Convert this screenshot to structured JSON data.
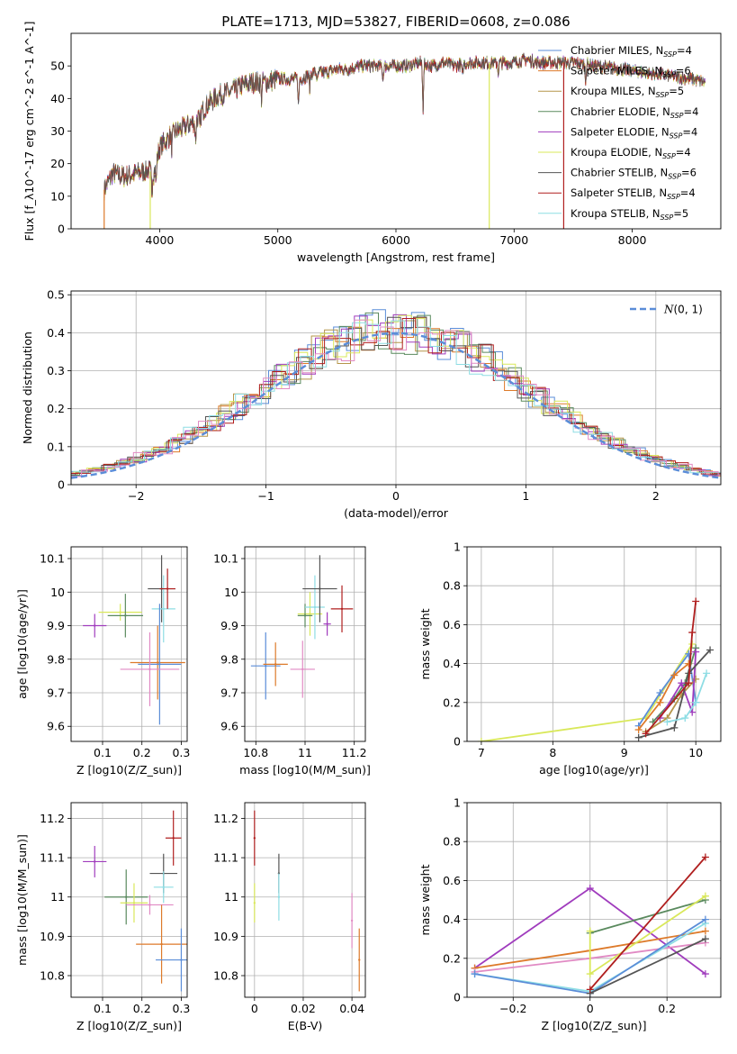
{
  "figure_title": "PLATE=1713, MJD=53827, FIBERID=0608, z=0.086",
  "colors": {
    "Chabrier MILES": "#5b8dd8",
    "Salpeter MILES": "#dd7a2a",
    "Kroupa MILES": "#b5954a",
    "Chabrier ELODIE": "#5a8a5e",
    "Salpeter ELODIE": "#a03cbd",
    "Kroupa ELODIE": "#d9e85a",
    "Chabrier STELIB": "#555555",
    "Salpeter STELIB": "#b01f1f",
    "Kroupa STELIB": "#8edde4",
    "pink": "#e18ac4",
    "normal": "#5b8dd8"
  },
  "chart_data": [
    {
      "id": "spectrum",
      "type": "line",
      "title": "PLATE=1713, MJD=53827, FIBERID=0608, z=0.086",
      "xlabel": "wavelength [Angstrom, rest frame]",
      "ylabel": "Flux [f_λ10^-17 erg cm^-2 s^-1 A^-1]",
      "xlim": [
        3250,
        8750
      ],
      "ylim": [
        0,
        60
      ],
      "xticks": [
        4000,
        5000,
        6000,
        7000,
        8000
      ],
      "yticks": [
        0,
        10,
        20,
        30,
        40,
        50
      ],
      "legend": [
        "Chabrier MILES, N_SSP=4",
        "Salpeter MILES, N_SSP=6",
        "Kroupa MILES, N_SSP=5",
        "Chabrier ELODIE, N_SSP=4",
        "Salpeter ELODIE, N_SSP=4",
        "Kroupa ELODIE, N_SSP=4",
        "Chabrier STELIB, N_SSP=6",
        "Salpeter STELIB, N_SSP=4",
        "Kroupa STELIB, N_SSP=5"
      ],
      "legend_placement": "right",
      "continuum": [
        [
          3530,
          12
        ],
        [
          3600,
          17
        ],
        [
          3700,
          16
        ],
        [
          3800,
          17
        ],
        [
          3900,
          18
        ],
        [
          3950,
          17
        ],
        [
          4000,
          25
        ],
        [
          4100,
          29
        ],
        [
          4200,
          31
        ],
        [
          4300,
          33
        ],
        [
          4400,
          38
        ],
        [
          4500,
          41
        ],
        [
          4600,
          42
        ],
        [
          4700,
          44
        ],
        [
          4800,
          45
        ],
        [
          4900,
          45
        ],
        [
          5000,
          46
        ],
        [
          5100,
          46
        ],
        [
          5200,
          46
        ],
        [
          5300,
          48
        ],
        [
          5400,
          48
        ],
        [
          5500,
          49
        ],
        [
          5600,
          49
        ],
        [
          5700,
          50
        ],
        [
          5800,
          50
        ],
        [
          5900,
          50
        ],
        [
          6000,
          50
        ],
        [
          6100,
          50
        ],
        [
          6200,
          51
        ],
        [
          6300,
          50
        ],
        [
          6400,
          51
        ],
        [
          6500,
          50
        ],
        [
          6600,
          51
        ],
        [
          6700,
          51
        ],
        [
          6800,
          51
        ],
        [
          6900,
          51
        ],
        [
          7000,
          51
        ],
        [
          7100,
          52
        ],
        [
          7200,
          51
        ],
        [
          7300,
          51
        ],
        [
          7400,
          51
        ],
        [
          7500,
          51
        ],
        [
          7700,
          50
        ],
        [
          7900,
          49
        ],
        [
          8100,
          48
        ],
        [
          8300,
          47
        ],
        [
          8500,
          46
        ],
        [
          8620,
          45
        ]
      ],
      "absorption_lines": [
        [
          3934,
          6
        ],
        [
          3969,
          6
        ],
        [
          4102,
          4
        ],
        [
          4304,
          6
        ],
        [
          4340,
          5
        ],
        [
          4861,
          5
        ],
        [
          5175,
          8
        ],
        [
          5270,
          4
        ],
        [
          5335,
          3
        ],
        [
          5890,
          4
        ],
        [
          6230,
          14
        ],
        [
          6563,
          4
        ],
        [
          6867,
          3
        ],
        [
          7605,
          5
        ]
      ],
      "cutoffs": [
        {
          "label": "Kroupa ELODIE",
          "x": 3920
        },
        {
          "label": "Kroupa ELODIE",
          "x": 6790
        },
        {
          "label": "Salpeter STELIB",
          "x": 7420
        },
        {
          "label": "Salpeter MILES",
          "x": 3530
        }
      ],
      "grid": false
    },
    {
      "id": "residuals",
      "type": "histogram",
      "xlabel": "(data-model)/error",
      "ylabel": "Normed distribution",
      "xlim": [
        -2.5,
        2.5
      ],
      "ylim": [
        0,
        0.51
      ],
      "xticks": [
        -2,
        -1,
        0,
        1,
        2
      ],
      "yticks": [
        0.0,
        0.1,
        0.2,
        0.3,
        0.4,
        0.5
      ],
      "legend": [
        "N(0,1)"
      ],
      "legend_placement": "upper right",
      "grid": true,
      "bin_width": 0.1,
      "reference_curve": "normal(0,1)"
    },
    {
      "id": "age_vs_Z",
      "type": "scatter",
      "xlabel": "Z [log10(Z/Z_sun)]",
      "ylabel": "age [log10(age/yr)]",
      "xlim": [
        0.02,
        0.315
      ],
      "ylim": [
        9.555,
        10.135
      ],
      "xticks": [
        0.1,
        0.2,
        0.3
      ],
      "yticks": [
        9.6,
        9.7,
        9.8,
        9.9,
        10.0,
        10.1
      ],
      "grid": true,
      "points": [
        {
          "x": 0.08,
          "y": 9.9,
          "xerr": 0.03,
          "yerr": 0.035,
          "series": "Salpeter ELODIE"
        },
        {
          "x": 0.145,
          "y": 9.94,
          "xerr": 0.055,
          "yerr": 0.025,
          "series": "Kroupa ELODIE"
        },
        {
          "x": 0.158,
          "y": 9.93,
          "xerr": 0.045,
          "yerr": 0.065,
          "series": "Chabrier ELODIE"
        },
        {
          "x": 0.25,
          "y": 10.01,
          "xerr": 0.035,
          "yerr": 0.1,
          "series": "Chabrier STELIB"
        },
        {
          "x": 0.255,
          "y": 9.95,
          "xerr": 0.03,
          "yerr": 0.1,
          "series": "Kroupa STELIB"
        },
        {
          "x": 0.265,
          "y": 10.01,
          "xerr": 0.02,
          "yerr": 0.06,
          "series": "Salpeter STELIB"
        },
        {
          "x": 0.24,
          "y": 9.79,
          "xerr": 0.07,
          "yerr": 0.11,
          "series": "Salpeter MILES"
        },
        {
          "x": 0.245,
          "y": 9.785,
          "xerr": 0.055,
          "yerr": 0.18,
          "series": "Chabrier MILES"
        },
        {
          "x": 0.22,
          "y": 9.77,
          "xerr": 0.075,
          "yerr": 0.11,
          "series": "pink"
        }
      ]
    },
    {
      "id": "age_vs_mass",
      "type": "scatter",
      "xlabel": "mass [log10(M/M_sun)]",
      "ylabel": "",
      "xlim": [
        10.755,
        11.245
      ],
      "ylim": [
        9.555,
        10.135
      ],
      "xticks": [
        10.8,
        11.0,
        11.2
      ],
      "yticks": [
        9.6,
        9.7,
        9.8,
        9.9,
        10.0,
        10.1
      ],
      "grid": true,
      "points": [
        {
          "x": 10.84,
          "y": 9.78,
          "xerr": 0.06,
          "yerr": 0.1,
          "series": "Chabrier MILES"
        },
        {
          "x": 10.88,
          "y": 9.785,
          "xerr": 0.05,
          "yerr": 0.065,
          "series": "Salpeter MILES"
        },
        {
          "x": 10.99,
          "y": 9.77,
          "xerr": 0.05,
          "yerr": 0.085,
          "series": "pink"
        },
        {
          "x": 11.02,
          "y": 9.935,
          "xerr": 0.05,
          "yerr": 0.065,
          "series": "Kroupa ELODIE"
        },
        {
          "x": 11.0,
          "y": 9.93,
          "xerr": 0.03,
          "yerr": 0.035,
          "series": "Chabrier ELODIE"
        },
        {
          "x": 11.04,
          "y": 9.955,
          "xerr": 0.04,
          "yerr": 0.095,
          "series": "Kroupa STELIB"
        },
        {
          "x": 11.06,
          "y": 10.01,
          "xerr": 0.07,
          "yerr": 0.1,
          "series": "Chabrier STELIB"
        },
        {
          "x": 11.09,
          "y": 9.905,
          "xerr": 0.015,
          "yerr": 0.035,
          "series": "Salpeter ELODIE"
        },
        {
          "x": 11.15,
          "y": 9.95,
          "xerr": 0.045,
          "yerr": 0.07,
          "series": "Salpeter STELIB"
        }
      ]
    },
    {
      "id": "weight_vs_age",
      "type": "line",
      "xlabel": "age [log10(age/yr)]",
      "ylabel": "mass weight",
      "xlim": [
        6.8,
        10.35
      ],
      "ylim": [
        0,
        1.0
      ],
      "xticks": [
        7,
        8,
        9,
        10
      ],
      "yticks": [
        0.0,
        0.2,
        0.4,
        0.6,
        0.8,
        1.0
      ],
      "grid": true,
      "series": [
        {
          "series": "Kroupa ELODIE",
          "points": [
            [
              7.0,
              0.0
            ],
            [
              9.3,
              0.12
            ],
            [
              9.95,
              0.5
            ]
          ]
        },
        {
          "series": "Chabrier MILES",
          "points": [
            [
              9.2,
              0.08
            ],
            [
              9.5,
              0.25
            ],
            [
              9.9,
              0.45
            ],
            [
              10.0,
              0.2
            ]
          ]
        },
        {
          "series": "Salpeter MILES",
          "points": [
            [
              9.2,
              0.06
            ],
            [
              9.5,
              0.2
            ],
            [
              9.7,
              0.34
            ],
            [
              9.9,
              0.4
            ]
          ]
        },
        {
          "series": "Kroupa MILES",
          "points": [
            [
              9.3,
              0.05
            ],
            [
              9.6,
              0.12
            ],
            [
              9.8,
              0.24
            ],
            [
              10.0,
              0.32
            ]
          ]
        },
        {
          "series": "Chabrier ELODIE",
          "points": [
            [
              9.4,
              0.1
            ],
            [
              9.7,
              0.22
            ],
            [
              9.85,
              0.3
            ],
            [
              10.0,
              0.48
            ]
          ]
        },
        {
          "series": "Salpeter ELODIE",
          "points": [
            [
              9.5,
              0.12
            ],
            [
              9.8,
              0.3
            ],
            [
              9.95,
              0.15
            ],
            [
              10.0,
              0.46
            ]
          ]
        },
        {
          "series": "Chabrier STELIB",
          "points": [
            [
              9.2,
              0.02
            ],
            [
              9.7,
              0.07
            ],
            [
              9.9,
              0.35
            ],
            [
              10.2,
              0.47
            ]
          ]
        },
        {
          "series": "Salpeter STELIB",
          "points": [
            [
              9.3,
              0.04
            ],
            [
              9.9,
              0.3
            ],
            [
              9.95,
              0.56
            ],
            [
              10.0,
              0.72
            ]
          ]
        },
        {
          "series": "Kroupa STELIB",
          "points": [
            [
              9.6,
              0.1
            ],
            [
              9.85,
              0.12
            ],
            [
              10.0,
              0.2
            ],
            [
              10.15,
              0.35
            ]
          ]
        }
      ]
    },
    {
      "id": "mass_vs_Z",
      "type": "scatter",
      "xlabel": "Z [log10(Z/Z_sun)]",
      "ylabel": "mass [log10(M/M_sun)]",
      "xlim": [
        0.02,
        0.315
      ],
      "ylim": [
        10.745,
        11.24
      ],
      "xticks": [
        0.1,
        0.2,
        0.3
      ],
      "yticks": [
        10.8,
        10.9,
        11.0,
        11.1,
        11.2
      ],
      "grid": true,
      "points": [
        {
          "x": 0.08,
          "y": 11.09,
          "xerr": 0.03,
          "yerr": 0.04,
          "series": "Salpeter ELODIE"
        },
        {
          "x": 0.16,
          "y": 11.0,
          "xerr": 0.055,
          "yerr": 0.07,
          "series": "Chabrier ELODIE"
        },
        {
          "x": 0.18,
          "y": 10.985,
          "xerr": 0.035,
          "yerr": 0.05,
          "series": "Kroupa ELODIE"
        },
        {
          "x": 0.22,
          "y": 10.98,
          "xerr": 0.06,
          "yerr": 0.025,
          "series": "pink"
        },
        {
          "x": 0.255,
          "y": 11.06,
          "xerr": 0.035,
          "yerr": 0.05,
          "series": "Chabrier STELIB"
        },
        {
          "x": 0.255,
          "y": 11.025,
          "xerr": 0.025,
          "yerr": 0.04,
          "series": "Kroupa STELIB"
        },
        {
          "x": 0.28,
          "y": 11.15,
          "xerr": 0.02,
          "yerr": 0.07,
          "series": "Salpeter STELIB"
        },
        {
          "x": 0.25,
          "y": 10.88,
          "xerr": 0.065,
          "yerr": 0.1,
          "series": "Salpeter MILES"
        },
        {
          "x": 0.3,
          "y": 10.84,
          "xerr": 0.065,
          "yerr": 0.08,
          "series": "Chabrier MILES"
        }
      ]
    },
    {
      "id": "mass_vs_EBV",
      "type": "scatter",
      "xlabel": "E(B-V)",
      "ylabel": "",
      "xlim": [
        -0.004,
        0.0455
      ],
      "ylim": [
        10.745,
        11.24
      ],
      "xticks": [
        0.0,
        0.02,
        0.04
      ],
      "yticks": [
        10.8,
        10.9,
        11.0,
        11.1,
        11.2
      ],
      "grid": true,
      "points": [
        {
          "x": 0.0,
          "y": 11.15,
          "xerr": 0.0,
          "yerr": 0.07,
          "series": "Salpeter STELIB"
        },
        {
          "x": 0.0,
          "y": 10.985,
          "xerr": 0.0,
          "yerr": 0.05,
          "series": "Kroupa ELODIE"
        },
        {
          "x": 0.01,
          "y": 11.06,
          "xerr": 0.0,
          "yerr": 0.05,
          "series": "Chabrier STELIB"
        },
        {
          "x": 0.01,
          "y": 11.0,
          "xerr": 0.0,
          "yerr": 0.06,
          "series": "Kroupa STELIB"
        },
        {
          "x": 0.04,
          "y": 10.94,
          "xerr": 0.0,
          "yerr": 0.07,
          "series": "pink"
        },
        {
          "x": 0.043,
          "y": 10.84,
          "xerr": 0.0,
          "yerr": 0.08,
          "series": "Salpeter MILES"
        }
      ]
    },
    {
      "id": "weight_vs_Z",
      "type": "line",
      "xlabel": "Z [log10(Z/Z_sun)]",
      "ylabel": "mass weight",
      "xlim": [
        -0.32,
        0.34
      ],
      "ylim": [
        0,
        1.0
      ],
      "xticks": [
        -0.2,
        0.0,
        0.2
      ],
      "yticks": [
        0.0,
        0.2,
        0.4,
        0.6,
        0.8,
        1.0
      ],
      "grid": true,
      "series": [
        {
          "series": "Salpeter ELODIE",
          "points": [
            [
              -0.3,
              0.15
            ],
            [
              0.0,
              0.56
            ],
            [
              0.3,
              0.12
            ]
          ]
        },
        {
          "series": "Salpeter MILES",
          "points": [
            [
              -0.3,
              0.15
            ],
            [
              0.0,
              0.24
            ],
            [
              0.3,
              0.34
            ]
          ]
        },
        {
          "series": "pink",
          "points": [
            [
              -0.3,
              0.13
            ],
            [
              0.0,
              0.2
            ],
            [
              0.3,
              0.28
            ]
          ]
        },
        {
          "series": "Chabrier ELODIE",
          "points": [
            [
              0.0,
              0.33
            ],
            [
              0.3,
              0.5
            ]
          ]
        },
        {
          "series": "Kroupa ELODIE",
          "points": [
            [
              0.0,
              0.34
            ],
            [
              0.0,
              0.12
            ],
            [
              0.3,
              0.52
            ]
          ]
        },
        {
          "series": "Kroupa STELIB",
          "points": [
            [
              -0.3,
              0.12
            ],
            [
              0.0,
              0.03
            ],
            [
              0.3,
              0.38
            ]
          ]
        },
        {
          "series": "Chabrier MILES",
          "points": [
            [
              -0.3,
              0.12
            ],
            [
              0.0,
              0.02
            ],
            [
              0.3,
              0.4
            ]
          ]
        },
        {
          "series": "Chabrier STELIB",
          "points": [
            [
              0.0,
              0.02
            ],
            [
              0.3,
              0.3
            ]
          ]
        },
        {
          "series": "Salpeter STELIB",
          "points": [
            [
              0.0,
              0.04
            ],
            [
              0.3,
              0.72
            ]
          ]
        }
      ]
    }
  ]
}
